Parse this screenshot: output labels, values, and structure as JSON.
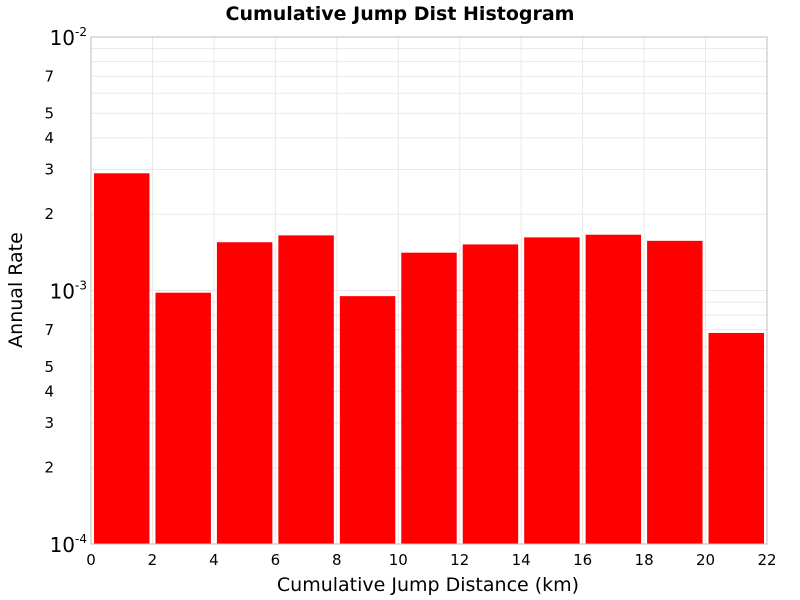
{
  "chart_data": {
    "type": "bar",
    "title": "Cumulative Jump Dist Histogram",
    "xlabel": "Cumulative Jump Distance (km)",
    "ylabel": "Annual Rate",
    "xlim": [
      0,
      22
    ],
    "ylim": [
      0.0001,
      0.01
    ],
    "y_scale": "log",
    "bin_width": 2,
    "grid": true,
    "bar_color": "#ff0000",
    "x_ticks": [
      0,
      2,
      4,
      6,
      8,
      10,
      12,
      14,
      16,
      18,
      20,
      22
    ],
    "y_major_ticks": [
      {
        "value": 0.01,
        "base": "10",
        "exp": "-2"
      },
      {
        "value": 0.001,
        "base": "10",
        "exp": "-3"
      },
      {
        "value": 0.0001,
        "base": "10",
        "exp": "-4"
      }
    ],
    "y_minor_labels": [
      {
        "value": 0.007,
        "label": "7"
      },
      {
        "value": 0.005,
        "label": "5"
      },
      {
        "value": 0.004,
        "label": "4"
      },
      {
        "value": 0.003,
        "label": "3"
      },
      {
        "value": 0.002,
        "label": "2"
      },
      {
        "value": 0.0007,
        "label": "7"
      },
      {
        "value": 0.0005,
        "label": "5"
      },
      {
        "value": 0.0004,
        "label": "4"
      },
      {
        "value": 0.0003,
        "label": "3"
      },
      {
        "value": 0.0002,
        "label": "2"
      }
    ],
    "bins": [
      {
        "x_start": 0,
        "x_end": 2,
        "value": 0.0029
      },
      {
        "x_start": 2,
        "x_end": 4,
        "value": 0.00098
      },
      {
        "x_start": 4,
        "x_end": 6,
        "value": 0.00155
      },
      {
        "x_start": 6,
        "x_end": 8,
        "value": 0.00165
      },
      {
        "x_start": 8,
        "x_end": 10,
        "value": 0.00095
      },
      {
        "x_start": 10,
        "x_end": 12,
        "value": 0.00141
      },
      {
        "x_start": 12,
        "x_end": 14,
        "value": 0.00152
      },
      {
        "x_start": 14,
        "x_end": 16,
        "value": 0.00162
      },
      {
        "x_start": 16,
        "x_end": 18,
        "value": 0.00166
      },
      {
        "x_start": 18,
        "x_end": 20,
        "value": 0.00157
      },
      {
        "x_start": 20,
        "x_end": 22,
        "value": 0.00068
      }
    ]
  }
}
